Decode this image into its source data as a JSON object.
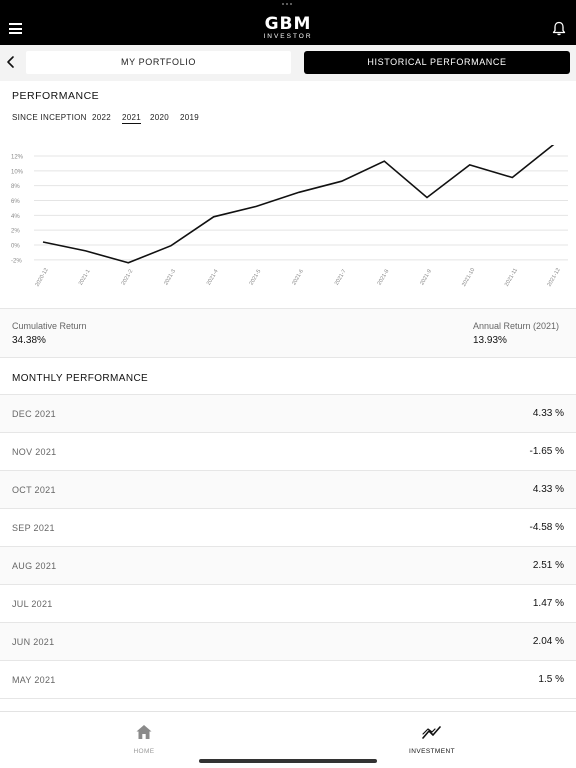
{
  "header": {
    "brand": "GBM",
    "brand_sub": "INVESTOR",
    "menu_icon": "hamburger-icon",
    "notification_icon": "bell-icon"
  },
  "tabs": [
    {
      "label": "MY PORTFOLIO",
      "active": false
    },
    {
      "label": "HISTORICAL PERFORMANCE",
      "active": true
    }
  ],
  "performance": {
    "title": "PERFORMANCE",
    "filters": [
      {
        "label": "SINCE INCEPTION",
        "active": false
      },
      {
        "label": "2022",
        "active": false
      },
      {
        "label": "2021",
        "active": true
      },
      {
        "label": "2020",
        "active": false
      },
      {
        "label": "2019",
        "active": false
      }
    ]
  },
  "chart_data": {
    "type": "line",
    "title": "",
    "xlabel": "",
    "ylabel": "",
    "x": [
      "2020-12",
      "2021-1",
      "2021-2",
      "2021-3",
      "2021-4",
      "2021-5",
      "2021-6",
      "2021-7",
      "2021-8",
      "2021-9",
      "2021-10",
      "2021-11",
      "2021-12"
    ],
    "y_ticks": [
      "12%",
      "10%",
      "8%",
      "6%",
      "4%",
      "2%",
      "0%",
      "-2%"
    ],
    "series": [
      {
        "values": [
          0.4,
          -0.8,
          -2.4,
          -0.1,
          3.8,
          5.2,
          7.1,
          8.6,
          11.3,
          6.4,
          10.8,
          9.1,
          13.7
        ]
      }
    ],
    "ylim": [
      -2,
      13
    ],
    "grid": true,
    "line_color": "#111111"
  },
  "stats": {
    "cumulative_label": "Cumulative Return",
    "cumulative_value": "34.38%",
    "annual_label": "Annual Return (2021)",
    "annual_value": "13.93%"
  },
  "monthly": {
    "title": "MONTHLY PERFORMANCE",
    "rows": [
      {
        "month": "DEC 2021",
        "value": "4.33 %"
      },
      {
        "month": "NOV 2021",
        "value": "-1.65 %"
      },
      {
        "month": "OCT 2021",
        "value": "4.33 %"
      },
      {
        "month": "SEP 2021",
        "value": "-4.58 %"
      },
      {
        "month": "AUG 2021",
        "value": "2.51 %"
      },
      {
        "month": "JUL 2021",
        "value": "1.47 %"
      },
      {
        "month": "JUN 2021",
        "value": "2.04 %"
      },
      {
        "month": "MAY 2021",
        "value": "1.5 %"
      }
    ]
  },
  "bottom_nav": [
    {
      "label": "HOME",
      "icon": "home-icon",
      "active": false
    },
    {
      "label": "INVESTMENT",
      "icon": "investment-chart-icon",
      "active": true
    }
  ]
}
